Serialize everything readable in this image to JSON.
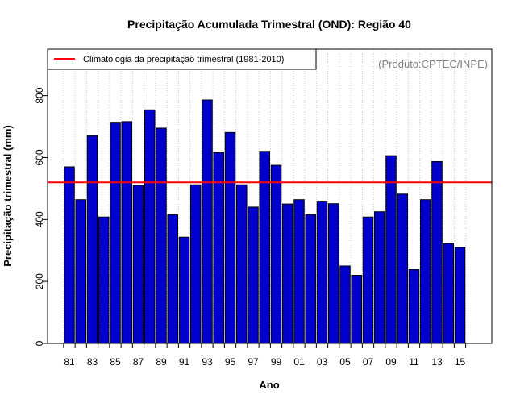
{
  "chart_data": {
    "type": "bar",
    "title": "Precipitação Acumulada Trimestral (OND): Região 40",
    "xlabel": "Ano",
    "ylabel": "Precipitação trimestral (mm)",
    "ylim": [
      0,
      950
    ],
    "yticks": [
      0,
      200,
      400,
      600,
      800
    ],
    "grid": "vertical dotted",
    "categories": [
      "81",
      "82",
      "83",
      "84",
      "85",
      "86",
      "87",
      "88",
      "89",
      "90",
      "91",
      "92",
      "93",
      "94",
      "95",
      "96",
      "97",
      "98",
      "99",
      "00",
      "01",
      "02",
      "03",
      "04",
      "05",
      "06",
      "07",
      "08",
      "09",
      "10",
      "11",
      "12",
      "13",
      "14",
      "15"
    ],
    "tick_labels": [
      "81",
      "83",
      "85",
      "87",
      "89",
      "91",
      "93",
      "95",
      "97",
      "99",
      "01",
      "03",
      "05",
      "07",
      "09",
      "11",
      "13",
      "15"
    ],
    "values": [
      570,
      464,
      670,
      408,
      714,
      716,
      510,
      754,
      695,
      415,
      343,
      512,
      786,
      616,
      681,
      512,
      440,
      620,
      575,
      450,
      464,
      415,
      459,
      451,
      250,
      220,
      408,
      425,
      606,
      482,
      238,
      464,
      587,
      322,
      310
    ],
    "bar_color": "#0000cc",
    "climatology": {
      "value": 520,
      "color": "#ff0000",
      "legend_label": "Climatologia da precipitação trimestral (1981-2010)"
    },
    "legend_position": "top-left",
    "source_note": "(Produto:CPTEC/INPE)"
  }
}
